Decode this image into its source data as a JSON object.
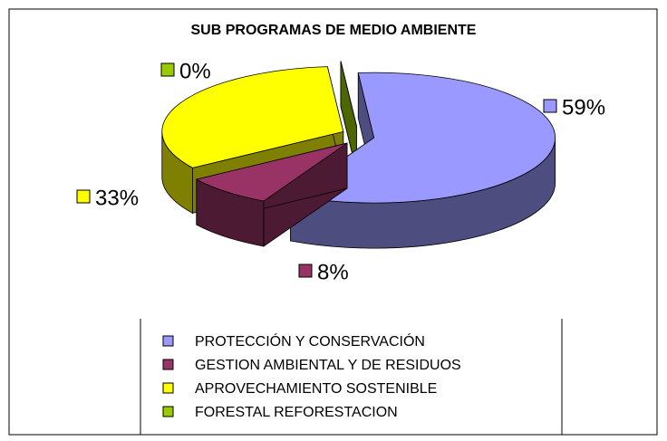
{
  "chart_data": {
    "type": "pie3d",
    "title": "SUB PROGRAMAS DE MEDIO AMBIENTE",
    "categories": [
      "PROTECCIÓN Y CONSERVACIÓN",
      "GESTION AMBIENTAL Y DE RESIDUOS",
      "APROVECHAMIENTO SOSTENIBLE",
      "FORESTAL REFORESTACION"
    ],
    "values": [
      59,
      8,
      33,
      0
    ],
    "value_labels": [
      "59%",
      "8%",
      "33%",
      "0%"
    ],
    "colors": [
      "#9999ff",
      "#993366",
      "#ffff00",
      "#99cc00"
    ],
    "legend": "bottom"
  }
}
